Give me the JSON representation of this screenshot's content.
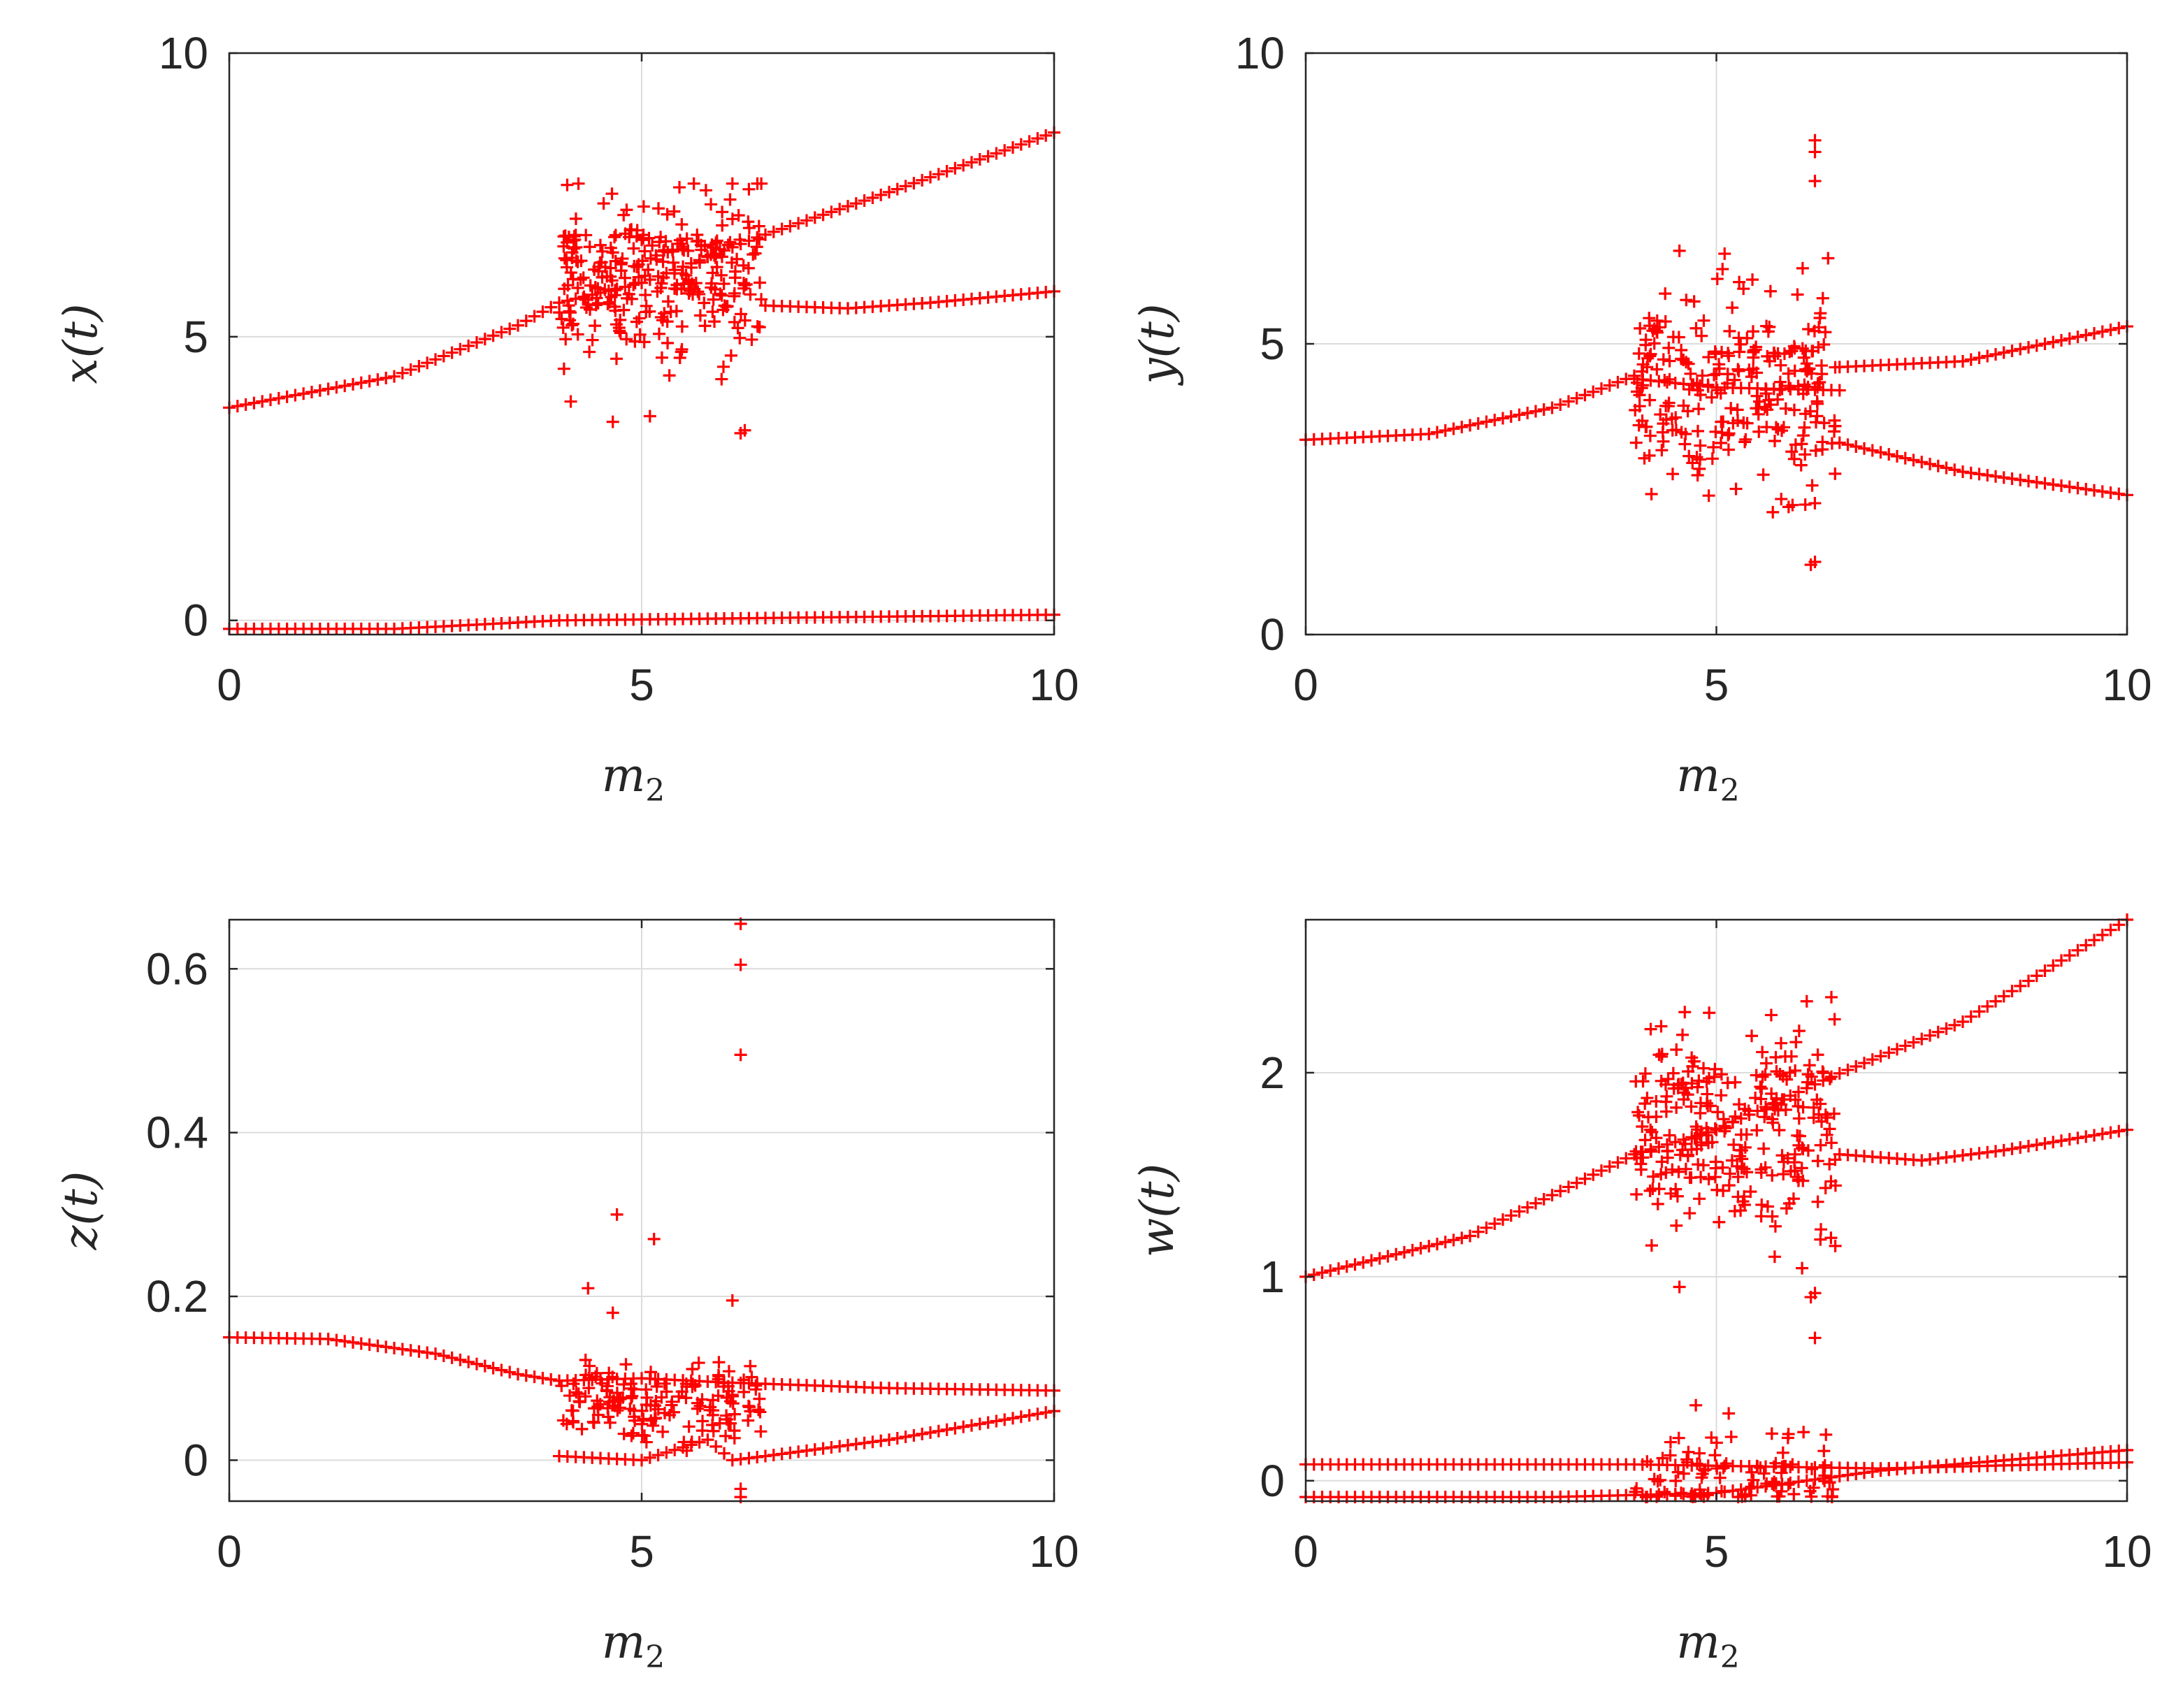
{
  "chart_data": [
    {
      "type": "scatter",
      "id": "x",
      "xlabel": "m",
      "xlabel_sub": "2",
      "ylabel": "x(t)",
      "xlim": [
        0,
        10
      ],
      "ylim": [
        -0.25,
        10
      ],
      "xticks": [
        0,
        5,
        10
      ],
      "yticks": [
        0,
        5,
        10
      ],
      "xtick_labels": [
        "0",
        "5",
        "10"
      ],
      "ytick_labels": [
        "0",
        "5",
        "10"
      ],
      "grid": true,
      "marker": "+",
      "color": "#ff0000",
      "branches": [
        {
          "from": 0,
          "to": 10,
          "step": 0.1,
          "knots": [
            [
              0,
              3.75
            ],
            [
              2,
              4.3
            ],
            [
              3.5,
              5.2
            ],
            [
              4,
              5.6
            ],
            [
              5,
              5.95
            ],
            [
              6.4,
              6.75
            ],
            [
              8,
              7.55
            ],
            [
              10,
              8.6
            ]
          ]
        },
        {
          "from": 6.5,
          "to": 10,
          "step": 0.1,
          "knots": [
            [
              6.5,
              5.55
            ],
            [
              7.5,
              5.5
            ],
            [
              8.5,
              5.6
            ],
            [
              10,
              5.8
            ]
          ]
        },
        {
          "from": 0,
          "to": 10,
          "step": 0.1,
          "knots": [
            [
              0,
              -0.15
            ],
            [
              2,
              -0.15
            ],
            [
              4,
              0.0
            ],
            [
              7,
              0.05
            ],
            [
              10,
              0.1
            ]
          ]
        }
      ],
      "chaos": {
        "from": 4.0,
        "to": 6.45,
        "count": 280,
        "band": [
          3.3,
          7.7
        ],
        "center": [
          5.0,
          6.0
        ],
        "seed": 11
      },
      "extra_points": [
        [
          6.2,
          3.3
        ],
        [
          6.25,
          3.35
        ],
        [
          4.65,
          3.5
        ],
        [
          5.1,
          3.6
        ],
        [
          6.1,
          7.7
        ],
        [
          6.45,
          7.7
        ],
        [
          6.3,
          7.6
        ]
      ]
    },
    {
      "type": "scatter",
      "id": "y",
      "xlabel": "m",
      "xlabel_sub": "2",
      "ylabel": "y(t)",
      "xlim": [
        0,
        10
      ],
      "ylim": [
        0,
        10
      ],
      "xticks": [
        0,
        5,
        10
      ],
      "yticks": [
        0,
        5,
        10
      ],
      "xtick_labels": [
        "0",
        "5",
        "10"
      ],
      "ytick_labels": [
        "0",
        "5",
        "10"
      ],
      "grid": true,
      "marker": "+",
      "color": "#ff0000",
      "branches": [
        {
          "from": 0,
          "to": 4.0,
          "step": 0.1,
          "knots": [
            [
              0,
              3.35
            ],
            [
              1.5,
              3.45
            ],
            [
              3,
              3.9
            ],
            [
              4,
              4.45
            ]
          ]
        },
        {
          "from": 4.0,
          "to": 6.5,
          "step": 0.1,
          "knots": [
            [
              4,
              4.4
            ],
            [
              5,
              4.25
            ],
            [
              6.5,
              4.2
            ]
          ]
        },
        {
          "from": 6.5,
          "to": 10,
          "step": 0.1,
          "knots": [
            [
              6.5,
              4.6
            ],
            [
              8,
              4.7
            ],
            [
              10,
              5.3
            ]
          ]
        },
        {
          "from": 6.5,
          "to": 10,
          "step": 0.1,
          "knots": [
            [
              6.5,
              3.3
            ],
            [
              8,
              2.8
            ],
            [
              10,
              2.4
            ]
          ]
        }
      ],
      "chaos": {
        "from": 4.0,
        "to": 6.45,
        "count": 260,
        "band": [
          1.8,
          6.6
        ],
        "center": [
          4.9,
          4.3
        ],
        "seed": 23
      },
      "extra_points": [
        [
          6.2,
          8.5
        ],
        [
          6.2,
          8.3
        ],
        [
          6.2,
          7.8
        ],
        [
          6.15,
          1.2
        ],
        [
          6.2,
          1.25
        ],
        [
          4.55,
          6.6
        ],
        [
          5.1,
          6.55
        ],
        [
          6.05,
          6.3
        ]
      ]
    },
    {
      "type": "scatter",
      "id": "z",
      "xlabel": "m",
      "xlabel_sub": "2",
      "ylabel": "z(t)",
      "xlim": [
        0,
        10
      ],
      "ylim": [
        -0.05,
        0.66
      ],
      "xticks": [
        0,
        5,
        10
      ],
      "yticks": [
        0,
        0.2,
        0.4,
        0.6
      ],
      "xtick_labels": [
        "0",
        "5",
        "10"
      ],
      "ytick_labels": [
        "0",
        "0.2",
        "0.4",
        "0.6"
      ],
      "grid": true,
      "marker": "+",
      "color": "#ff0000",
      "branches": [
        {
          "from": 0,
          "to": 10,
          "step": 0.1,
          "knots": [
            [
              0,
              0.15
            ],
            [
              1.2,
              0.148
            ],
            [
              2.5,
              0.13
            ],
            [
              3.5,
              0.105
            ],
            [
              4,
              0.097
            ],
            [
              5,
              0.1
            ],
            [
              6,
              0.095
            ],
            [
              8,
              0.088
            ],
            [
              10,
              0.085
            ]
          ]
        },
        {
          "from": 4.0,
          "to": 10,
          "step": 0.1,
          "knots": [
            [
              4,
              0.005
            ],
            [
              5,
              0.0
            ],
            [
              5.8,
              0.025
            ],
            [
              6.1,
              0.0
            ],
            [
              6.5,
              0.005
            ],
            [
              8,
              0.025
            ],
            [
              10,
              0.06
            ]
          ]
        }
      ],
      "chaos": {
        "from": 4.0,
        "to": 6.45,
        "count": 160,
        "band": [
          0.0,
          0.14
        ],
        "center": [
          5.0,
          0.07
        ],
        "seed": 37
      },
      "extra_points": [
        [
          6.2,
          0.655
        ],
        [
          6.2,
          0.605
        ],
        [
          6.2,
          0.495
        ],
        [
          4.7,
          0.3
        ],
        [
          5.15,
          0.27
        ],
        [
          4.35,
          0.21
        ],
        [
          6.1,
          0.195
        ],
        [
          4.65,
          0.18
        ],
        [
          6.2,
          -0.035
        ],
        [
          6.2,
          -0.045
        ]
      ]
    },
    {
      "type": "scatter",
      "id": "w",
      "xlabel": "m",
      "xlabel_sub": "2",
      "ylabel": "w(t)",
      "xlim": [
        0,
        10
      ],
      "ylim": [
        -0.1,
        2.75
      ],
      "xticks": [
        0,
        5,
        10
      ],
      "yticks": [
        0,
        1,
        2
      ],
      "xtick_labels": [
        "0",
        "5",
        "10"
      ],
      "ytick_labels": [
        "0",
        "1",
        "2"
      ],
      "grid": true,
      "marker": "+",
      "color": "#ff0000",
      "branches": [
        {
          "from": 0,
          "to": 10,
          "step": 0.1,
          "knots": [
            [
              0,
              1.0
            ],
            [
              2,
              1.2
            ],
            [
              3.5,
              1.5
            ],
            [
              4,
              1.6
            ],
            [
              5,
              1.72
            ],
            [
              6.4,
              1.98
            ],
            [
              8,
              2.25
            ],
            [
              10,
              2.75
            ]
          ]
        },
        {
          "from": 6.5,
          "to": 10,
          "step": 0.1,
          "knots": [
            [
              6.5,
              1.6
            ],
            [
              7.5,
              1.57
            ],
            [
              8.5,
              1.62
            ],
            [
              10,
              1.72
            ]
          ]
        },
        {
          "from": 0,
          "to": 10,
          "step": 0.1,
          "knots": [
            [
              0,
              0.08
            ],
            [
              4,
              0.08
            ],
            [
              7,
              0.06
            ],
            [
              10,
              0.09
            ]
          ]
        },
        {
          "from": 0,
          "to": 10,
          "step": 0.1,
          "knots": [
            [
              0,
              -0.08
            ],
            [
              3,
              -0.08
            ],
            [
              5,
              -0.06
            ],
            [
              7,
              0.05
            ],
            [
              10,
              0.15
            ]
          ]
        }
      ],
      "chaos": {
        "from": 4.0,
        "to": 6.45,
        "count": 270,
        "band": [
          0.9,
          2.4
        ],
        "center": [
          5.0,
          1.75
        ],
        "seed": 53
      },
      "chaos_low": {
        "from": 4.0,
        "to": 6.45,
        "count": 90,
        "band": [
          -0.08,
          0.25
        ],
        "seed": 71
      },
      "extra_points": [
        [
          6.2,
          0.7
        ],
        [
          6.2,
          0.92
        ],
        [
          6.15,
          0.9
        ],
        [
          4.75,
          0.37
        ],
        [
          5.15,
          0.33
        ],
        [
          4.55,
          0.95
        ],
        [
          6.4,
          2.37
        ],
        [
          6.1,
          2.35
        ]
      ]
    }
  ]
}
